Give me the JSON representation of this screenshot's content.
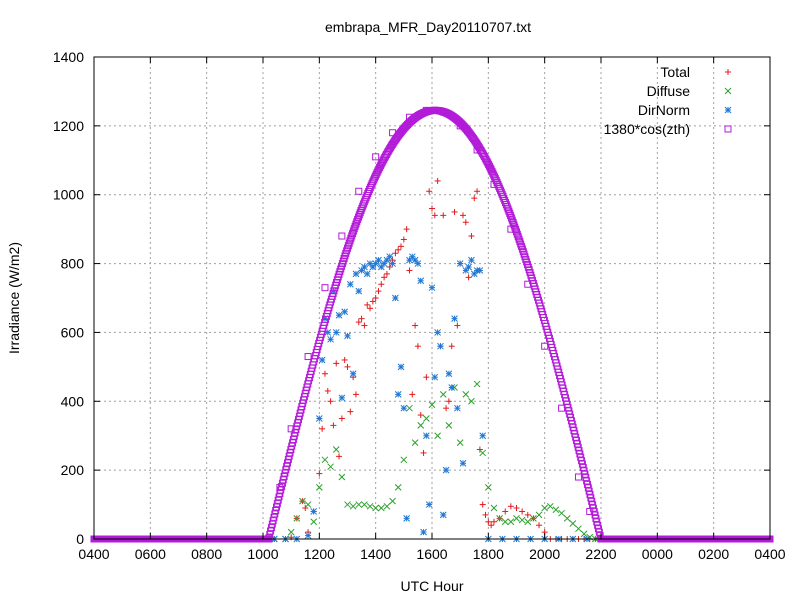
{
  "chart_data": {
    "type": "scatter",
    "title": "embrapa_MFR_Day20110707.txt",
    "xlabel": "UTC Hour",
    "ylabel": "Irradiance (W/m2)",
    "xlim": [
      4,
      28
    ],
    "ylim": [
      0,
      1400
    ],
    "x_ticks": [
      {
        "value": 4,
        "label": "0400"
      },
      {
        "value": 6,
        "label": "0600"
      },
      {
        "value": 8,
        "label": "0800"
      },
      {
        "value": 10,
        "label": "1000"
      },
      {
        "value": 12,
        "label": "1200"
      },
      {
        "value": 14,
        "label": "1400"
      },
      {
        "value": 16,
        "label": "1600"
      },
      {
        "value": 18,
        "label": "1800"
      },
      {
        "value": 20,
        "label": "2000"
      },
      {
        "value": 22,
        "label": "2200"
      },
      {
        "value": 24,
        "label": "0000"
      },
      {
        "value": 26,
        "label": "0200"
      },
      {
        "value": 28,
        "label": "0400"
      }
    ],
    "y_ticks": [
      0,
      200,
      400,
      600,
      800,
      1000,
      1200,
      1400
    ],
    "grid": true,
    "legend_position": "top-right",
    "series": [
      {
        "name": "Total",
        "marker": "plus",
        "color": "#e41a1c",
        "x": [
          10.4,
          11.0,
          11.2,
          11.4,
          11.5,
          11.6,
          11.8,
          12.0,
          12.1,
          12.2,
          12.3,
          12.4,
          12.5,
          12.6,
          12.7,
          12.8,
          12.9,
          13.0,
          13.1,
          13.2,
          13.3,
          13.4,
          13.5,
          13.6,
          13.7,
          13.8,
          13.9,
          14.0,
          14.1,
          14.2,
          14.3,
          14.4,
          14.5,
          14.6,
          14.7,
          14.8,
          14.9,
          15.0,
          15.1,
          15.2,
          15.3,
          15.4,
          15.5,
          15.6,
          15.7,
          15.8,
          15.9,
          16.0,
          16.1,
          16.2,
          16.3,
          16.4,
          16.5,
          16.6,
          16.7,
          16.8,
          16.9,
          17.0,
          17.1,
          17.2,
          17.3,
          17.4,
          17.5,
          17.6,
          17.7,
          17.8,
          17.9,
          18.0,
          18.1,
          18.2,
          18.4,
          18.6,
          18.8,
          19.0,
          19.2,
          19.4,
          19.6,
          19.8,
          20.0,
          20.2,
          20.4,
          20.6,
          20.8,
          21.0,
          21.2,
          21.4,
          21.6,
          21.8,
          22.0,
          22.2
        ],
        "y": [
          0,
          5,
          60,
          110,
          90,
          20,
          80,
          190,
          320,
          480,
          430,
          400,
          330,
          510,
          240,
          350,
          520,
          500,
          370,
          470,
          420,
          630,
          640,
          620,
          680,
          670,
          690,
          700,
          720,
          740,
          760,
          770,
          790,
          810,
          830,
          840,
          850,
          870,
          900,
          780,
          420,
          620,
          560,
          360,
          250,
          470,
          1010,
          960,
          940,
          1040,
          560,
          940,
          380,
          400,
          560,
          950,
          620,
          800,
          940,
          920,
          760,
          880,
          990,
          1010,
          260,
          100,
          70,
          50,
          40,
          50,
          60,
          80,
          95,
          90,
          80,
          70,
          60,
          40,
          20,
          0,
          0,
          0,
          0,
          0,
          0,
          0,
          0,
          0,
          0,
          0
        ]
      },
      {
        "name": "Diffuse",
        "marker": "cross",
        "color": "#2ca02c",
        "x": [
          10.4,
          10.8,
          11.0,
          11.2,
          11.4,
          11.6,
          11.8,
          12.0,
          12.2,
          12.4,
          12.6,
          12.8,
          13.0,
          13.2,
          13.4,
          13.6,
          13.8,
          14.0,
          14.2,
          14.4,
          14.6,
          14.8,
          15.0,
          15.2,
          15.4,
          15.6,
          15.8,
          16.0,
          16.2,
          16.4,
          16.6,
          16.8,
          17.0,
          17.2,
          17.4,
          17.6,
          17.8,
          18.0,
          18.2,
          18.4,
          18.6,
          18.8,
          19.0,
          19.2,
          19.4,
          19.6,
          19.8,
          20.0,
          20.2,
          20.4,
          20.6,
          20.8,
          21.0,
          21.2,
          21.4,
          21.6,
          21.8,
          22.0,
          22.2
        ],
        "y": [
          0,
          0,
          20,
          60,
          110,
          100,
          50,
          150,
          230,
          210,
          260,
          180,
          100,
          95,
          100,
          100,
          95,
          90,
          90,
          95,
          110,
          150,
          230,
          380,
          280,
          330,
          350,
          390,
          300,
          420,
          330,
          440,
          280,
          420,
          400,
          450,
          250,
          150,
          90,
          60,
          50,
          50,
          60,
          55,
          50,
          60,
          70,
          90,
          95,
          85,
          75,
          60,
          45,
          30,
          15,
          5,
          0,
          0,
          0
        ]
      },
      {
        "name": "DirNorm",
        "marker": "star",
        "color": "#1f77d4",
        "x": [
          10.4,
          10.8,
          11.2,
          11.6,
          11.8,
          12.0,
          12.1,
          12.2,
          12.3,
          12.4,
          12.5,
          12.6,
          12.7,
          12.8,
          12.9,
          13.0,
          13.1,
          13.2,
          13.3,
          13.4,
          13.5,
          13.6,
          13.7,
          13.8,
          13.9,
          14.0,
          14.1,
          14.2,
          14.3,
          14.4,
          14.5,
          14.6,
          14.7,
          14.8,
          14.9,
          15.0,
          15.1,
          15.2,
          15.3,
          15.4,
          15.5,
          15.6,
          15.7,
          15.8,
          15.9,
          16.0,
          16.1,
          16.2,
          16.3,
          16.4,
          16.5,
          16.6,
          16.7,
          16.8,
          16.9,
          17.0,
          17.1,
          17.2,
          17.3,
          17.4,
          17.5,
          17.6,
          17.7,
          17.8,
          18.0,
          18.5,
          19.0,
          19.5,
          20.0,
          20.5,
          21.0,
          21.5,
          22.0
        ],
        "y": [
          0,
          0,
          0,
          10,
          80,
          350,
          520,
          640,
          600,
          580,
          720,
          600,
          650,
          410,
          660,
          590,
          740,
          480,
          770,
          720,
          780,
          790,
          770,
          800,
          790,
          800,
          810,
          790,
          800,
          810,
          820,
          800,
          700,
          420,
          500,
          380,
          60,
          810,
          820,
          810,
          800,
          750,
          20,
          300,
          100,
          730,
          470,
          600,
          560,
          70,
          200,
          480,
          440,
          640,
          380,
          800,
          220,
          780,
          790,
          810,
          770,
          780,
          780,
          300,
          0,
          0,
          0,
          0,
          0,
          0,
          0,
          0,
          0
        ]
      },
      {
        "name": "1380*cos(zth)",
        "marker": "square",
        "color": "#b31bd9",
        "sun_rise": 10.2,
        "sun_set": 22.0,
        "peak_value": 1245,
        "x": [
          4,
          10.2,
          10.6,
          11.0,
          11.6,
          12.2,
          12.8,
          13.4,
          14.0,
          14.6,
          15.2,
          15.8,
          16.1,
          16.4,
          17.0,
          17.6,
          18.2,
          18.8,
          19.4,
          20.0,
          20.6,
          21.2,
          21.6,
          22.0,
          28
        ],
        "y": [
          0,
          0,
          150,
          320,
          530,
          730,
          880,
          1010,
          1110,
          1180,
          1225,
          1245,
          1245,
          1240,
          1200,
          1130,
          1030,
          900,
          740,
          560,
          380,
          180,
          80,
          0,
          0
        ]
      }
    ]
  }
}
